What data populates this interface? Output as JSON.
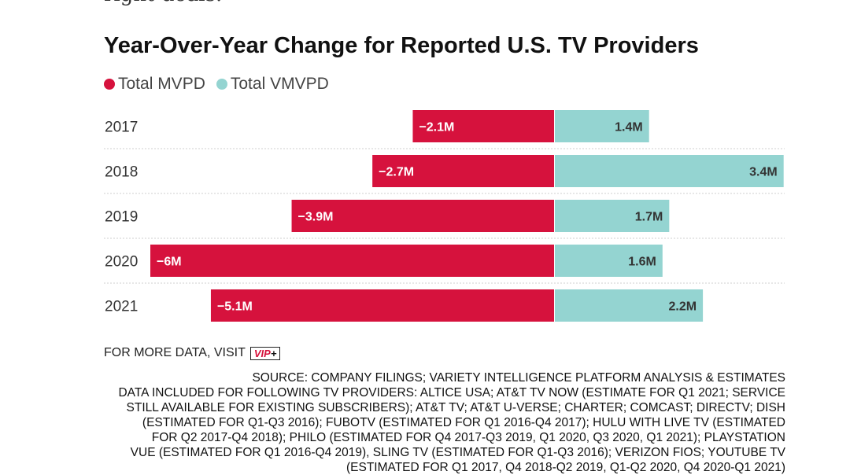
{
  "fragment": "right deals.",
  "title": "Year-Over-Year Change for Reported U.S. TV Providers",
  "legend": [
    {
      "label": "Total MVPD",
      "color": "#d6123d"
    },
    {
      "label": "Total VMVPD",
      "color": "#94d4d1"
    }
  ],
  "chart_data": {
    "type": "bar",
    "orientation": "horizontal-diverging",
    "categories": [
      "2017",
      "2018",
      "2019",
      "2020",
      "2021"
    ],
    "series": [
      {
        "name": "Total MVPD",
        "color": "#d6123d",
        "values": [
          -2.1,
          -2.7,
          -3.9,
          -6,
          -5.1
        ],
        "labels": [
          "−2.1M",
          "−2.7M",
          "−3.9M",
          "−6M",
          "−5.1M"
        ]
      },
      {
        "name": "Total VMVPD",
        "color": "#94d4d1",
        "values": [
          1.4,
          3.4,
          1.7,
          1.6,
          2.2
        ],
        "labels": [
          "1.4M",
          "3.4M",
          "1.7M",
          "1.6M",
          "2.2M"
        ]
      }
    ],
    "xlim": [
      -6,
      3.4
    ],
    "grid": false,
    "legend_position": "top-left"
  },
  "more_data": {
    "text": "FOR MORE DATA, VISIT",
    "badge_main": "VIP",
    "badge_plus": "+"
  },
  "source_lines": [
    "SOURCE: COMPANY FILINGS; VARIETY INTELLIGENCE PLATFORM ANALYSIS & ESTIMATES",
    "DATA INCLUDED FOR FOLLOWING TV PROVIDERS: ALTICE USA; AT&T TV NOW (ESTIMATE FOR Q1 2021; SERVICE",
    "STILL AVAILABLE FOR EXISTING SUBSCRIBERS); AT&T TV; AT&T U-VERSE; CHARTER; COMCAST; DIRECTV; DISH",
    "(ESTIMATED FOR Q1-Q3 2016); FUBOTV (ESTIMATED FOR Q1 2016-Q4 2017); HULU WITH LIVE TV (ESTIMATED",
    "FOR Q2 2017-Q4 2018); PHILO (ESTIMATED FOR Q4 2017-Q3 2019, Q1 2020, Q3 2020, Q1 2021); PLAYSTATION",
    "VUE (ESTIMATED FOR Q1 2016-Q4 2019), SLING TV (ESTIMATED FOR Q1-Q3 2016); VERIZON FIOS; YOUTUBE TV",
    "(ESTIMATED FOR Q1 2017, Q4 2018-Q2 2019, Q1-Q2 2020, Q4 2020-Q1 2021)"
  ]
}
